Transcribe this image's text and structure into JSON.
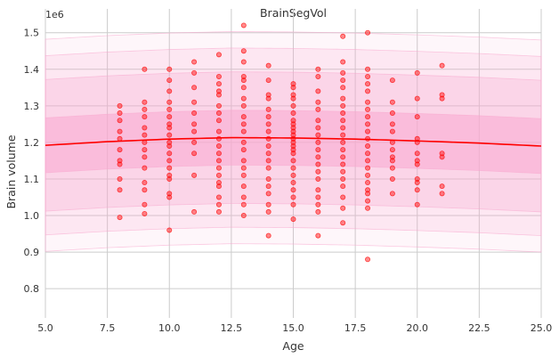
{
  "chart_data": {
    "type": "scatter",
    "title": "BrainSegVol",
    "xlabel": "Age",
    "ylabel": "Brain volume",
    "y_offset_label": "1e6",
    "xlim": [
      5.0,
      25.0
    ],
    "ylim": [
      0.72,
      1.565
    ],
    "xticks": [
      "5.0",
      "7.5",
      "10.0",
      "12.5",
      "15.0",
      "17.5",
      "20.0",
      "22.5",
      "25.0"
    ],
    "yticks": [
      "0.8",
      "0.9",
      "1.0",
      "1.1",
      "1.2",
      "1.3",
      "1.4",
      "1.5"
    ],
    "grid": true,
    "colors": {
      "median_line": "#ff0000",
      "points": "#ff0000",
      "band": "#f9a8cf"
    },
    "median_curve": {
      "x": [
        5,
        7.5,
        10,
        12.5,
        15,
        17.5,
        20,
        22.5,
        25
      ],
      "y": [
        1.192,
        1.202,
        1.209,
        1.213,
        1.212,
        1.209,
        1.204,
        1.198,
        1.19
      ]
    },
    "centile_bands": [
      {
        "lower_offset": -0.075,
        "upper_offset": 0.075,
        "opacity": 0.55
      },
      {
        "lower_offset": -0.18,
        "upper_offset": 0.18,
        "opacity": 0.28
      },
      {
        "lower_offset": -0.245,
        "upper_offset": 0.245,
        "opacity": 0.18
      },
      {
        "lower_offset": -0.29,
        "upper_offset": 0.29,
        "opacity": 0.1
      }
    ],
    "points": [
      [
        8,
        1.3
      ],
      [
        8,
        1.28
      ],
      [
        8,
        1.26
      ],
      [
        8,
        1.23
      ],
      [
        8,
        1.21
      ],
      [
        8,
        1.18
      ],
      [
        8,
        1.15
      ],
      [
        8,
        1.14
      ],
      [
        8,
        1.1
      ],
      [
        8,
        1.07
      ],
      [
        8,
        0.995
      ],
      [
        9,
        1.4
      ],
      [
        9,
        1.31
      ],
      [
        9,
        1.29
      ],
      [
        9,
        1.27
      ],
      [
        9,
        1.24
      ],
      [
        9,
        1.22
      ],
      [
        9,
        1.2
      ],
      [
        9,
        1.18
      ],
      [
        9,
        1.16
      ],
      [
        9,
        1.13
      ],
      [
        9,
        1.09
      ],
      [
        9,
        1.07
      ],
      [
        9,
        1.03
      ],
      [
        9,
        1.005
      ],
      [
        10,
        1.4
      ],
      [
        10,
        1.37
      ],
      [
        10,
        1.34
      ],
      [
        10,
        1.31
      ],
      [
        10,
        1.29
      ],
      [
        10,
        1.27
      ],
      [
        10,
        1.25
      ],
      [
        10,
        1.24
      ],
      [
        10,
        1.22
      ],
      [
        10,
        1.2
      ],
      [
        10,
        1.19
      ],
      [
        10,
        1.17
      ],
      [
        10,
        1.15
      ],
      [
        10,
        1.13
      ],
      [
        10,
        1.11
      ],
      [
        10,
        1.1
      ],
      [
        10,
        1.06
      ],
      [
        10,
        1.05
      ],
      [
        10,
        0.96
      ],
      [
        11,
        1.42
      ],
      [
        11,
        1.39
      ],
      [
        11,
        1.35
      ],
      [
        11,
        1.31
      ],
      [
        11,
        1.28
      ],
      [
        11,
        1.25
      ],
      [
        11,
        1.23
      ],
      [
        11,
        1.2
      ],
      [
        11,
        1.17
      ],
      [
        11,
        1.11
      ],
      [
        11,
        1.01
      ],
      [
        12,
        1.44
      ],
      [
        12,
        1.38
      ],
      [
        12,
        1.36
      ],
      [
        12,
        1.34
      ],
      [
        12,
        1.33
      ],
      [
        12,
        1.3
      ],
      [
        12,
        1.28
      ],
      [
        12,
        1.26
      ],
      [
        12,
        1.23
      ],
      [
        12,
        1.21
      ],
      [
        12,
        1.19
      ],
      [
        12,
        1.17
      ],
      [
        12,
        1.15
      ],
      [
        12,
        1.13
      ],
      [
        12,
        1.11
      ],
      [
        12,
        1.09
      ],
      [
        12,
        1.08
      ],
      [
        12,
        1.05
      ],
      [
        12,
        1.03
      ],
      [
        12,
        1.01
      ],
      [
        13,
        1.52
      ],
      [
        13,
        1.45
      ],
      [
        13,
        1.42
      ],
      [
        13,
        1.38
      ],
      [
        13,
        1.37
      ],
      [
        13,
        1.35
      ],
      [
        13,
        1.32
      ],
      [
        13,
        1.3
      ],
      [
        13,
        1.27
      ],
      [
        13,
        1.25
      ],
      [
        13,
        1.23
      ],
      [
        13,
        1.2
      ],
      [
        13,
        1.18
      ],
      [
        13,
        1.15
      ],
      [
        13,
        1.13
      ],
      [
        13,
        1.11
      ],
      [
        13,
        1.08
      ],
      [
        13,
        1.05
      ],
      [
        13,
        1.03
      ],
      [
        13,
        1.0
      ],
      [
        14,
        1.41
      ],
      [
        14,
        1.37
      ],
      [
        14,
        1.33
      ],
      [
        14,
        1.32
      ],
      [
        14,
        1.29
      ],
      [
        14,
        1.27
      ],
      [
        14,
        1.25
      ],
      [
        14,
        1.23
      ],
      [
        14,
        1.21
      ],
      [
        14,
        1.19
      ],
      [
        14,
        1.17
      ],
      [
        14,
        1.15
      ],
      [
        14,
        1.13
      ],
      [
        14,
        1.1
      ],
      [
        14,
        1.08
      ],
      [
        14,
        1.06
      ],
      [
        14,
        1.03
      ],
      [
        14,
        1.01
      ],
      [
        14,
        0.945
      ],
      [
        15,
        1.36
      ],
      [
        15,
        1.35
      ],
      [
        15,
        1.33
      ],
      [
        15,
        1.32
      ],
      [
        15,
        1.3
      ],
      [
        15,
        1.28
      ],
      [
        15,
        1.26
      ],
      [
        15,
        1.25
      ],
      [
        15,
        1.24
      ],
      [
        15,
        1.23
      ],
      [
        15,
        1.22
      ],
      [
        15,
        1.21
      ],
      [
        15,
        1.2
      ],
      [
        15,
        1.19
      ],
      [
        15,
        1.18
      ],
      [
        15,
        1.17
      ],
      [
        15,
        1.15
      ],
      [
        15,
        1.13
      ],
      [
        15,
        1.11
      ],
      [
        15,
        1.09
      ],
      [
        15,
        1.07
      ],
      [
        15,
        1.05
      ],
      [
        15,
        1.03
      ],
      [
        15,
        0.99
      ],
      [
        16,
        1.4
      ],
      [
        16,
        1.38
      ],
      [
        16,
        1.34
      ],
      [
        16,
        1.31
      ],
      [
        16,
        1.29
      ],
      [
        16,
        1.26
      ],
      [
        16,
        1.24
      ],
      [
        16,
        1.22
      ],
      [
        16,
        1.2
      ],
      [
        16,
        1.18
      ],
      [
        16,
        1.16
      ],
      [
        16,
        1.14
      ],
      [
        16,
        1.12
      ],
      [
        16,
        1.1
      ],
      [
        16,
        1.07
      ],
      [
        16,
        1.05
      ],
      [
        16,
        1.03
      ],
      [
        16,
        1.01
      ],
      [
        16,
        0.945
      ],
      [
        17,
        1.49
      ],
      [
        17,
        1.42
      ],
      [
        17,
        1.39
      ],
      [
        17,
        1.37
      ],
      [
        17,
        1.35
      ],
      [
        17,
        1.32
      ],
      [
        17,
        1.3
      ],
      [
        17,
        1.28
      ],
      [
        17,
        1.26
      ],
      [
        17,
        1.24
      ],
      [
        17,
        1.22
      ],
      [
        17,
        1.2
      ],
      [
        17,
        1.18
      ],
      [
        17,
        1.16
      ],
      [
        17,
        1.14
      ],
      [
        17,
        1.12
      ],
      [
        17,
        1.1
      ],
      [
        17,
        1.08
      ],
      [
        17,
        1.05
      ],
      [
        17,
        1.02
      ],
      [
        17,
        0.98
      ],
      [
        18,
        1.5
      ],
      [
        18,
        1.4
      ],
      [
        18,
        1.38
      ],
      [
        18,
        1.36
      ],
      [
        18,
        1.34
      ],
      [
        18,
        1.31
      ],
      [
        18,
        1.29
      ],
      [
        18,
        1.27
      ],
      [
        18,
        1.25
      ],
      [
        18,
        1.23
      ],
      [
        18,
        1.21
      ],
      [
        18,
        1.19
      ],
      [
        18,
        1.17
      ],
      [
        18,
        1.15
      ],
      [
        18,
        1.13
      ],
      [
        18,
        1.11
      ],
      [
        18,
        1.09
      ],
      [
        18,
        1.07
      ],
      [
        18,
        1.06
      ],
      [
        18,
        1.04
      ],
      [
        18,
        1.02
      ],
      [
        18,
        0.88
      ],
      [
        19,
        1.37
      ],
      [
        19,
        1.31
      ],
      [
        19,
        1.28
      ],
      [
        19,
        1.25
      ],
      [
        19,
        1.23
      ],
      [
        19,
        1.2
      ],
      [
        19,
        1.18
      ],
      [
        19,
        1.16
      ],
      [
        19,
        1.15
      ],
      [
        19,
        1.13
      ],
      [
        19,
        1.1
      ],
      [
        19,
        1.06
      ],
      [
        20,
        1.39
      ],
      [
        20,
        1.32
      ],
      [
        20,
        1.27
      ],
      [
        20,
        1.21
      ],
      [
        20,
        1.2
      ],
      [
        20,
        1.17
      ],
      [
        20,
        1.15
      ],
      [
        20,
        1.14
      ],
      [
        20,
        1.1
      ],
      [
        20,
        1.09
      ],
      [
        20,
        1.07
      ],
      [
        20,
        1.03
      ],
      [
        21,
        1.41
      ],
      [
        21,
        1.33
      ],
      [
        21,
        1.32
      ],
      [
        21,
        1.17
      ],
      [
        21,
        1.16
      ],
      [
        21,
        1.08
      ],
      [
        21,
        1.06
      ]
    ]
  }
}
